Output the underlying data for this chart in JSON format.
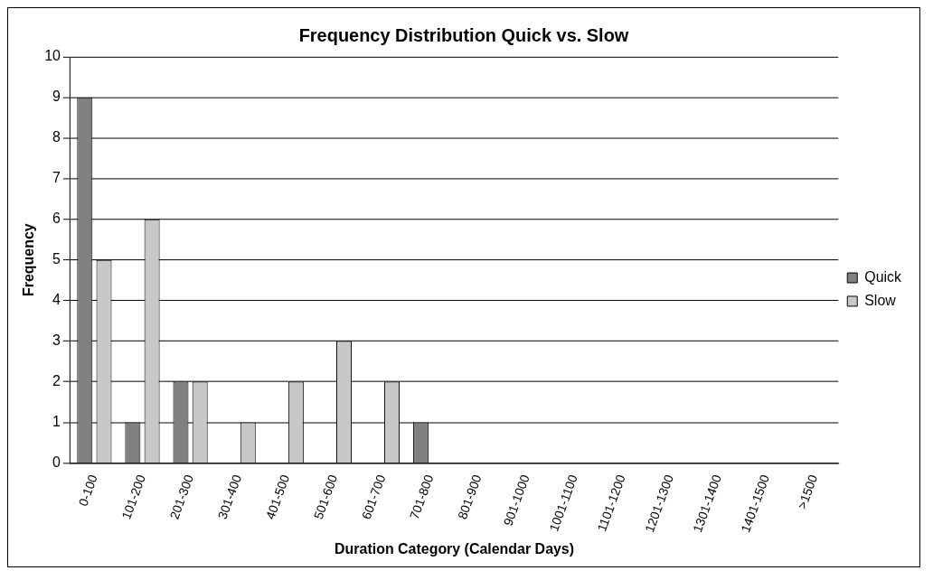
{
  "chart_data": {
    "type": "bar",
    "title": "Frequency Distribution Quick vs. Slow",
    "xlabel": "Duration Category (Calendar Days)",
    "ylabel": "Frequency",
    "categories": [
      "0-100",
      "101-200",
      "201-300",
      "301-400",
      "401-500",
      "501-600",
      "601-700",
      "701-800",
      "801-900",
      "901-1000",
      "1001-1100",
      "1101-1200",
      "1201-1300",
      "1301-1400",
      "1401-1500",
      ">1500"
    ],
    "series": [
      {
        "name": "Quick",
        "color": "#808080",
        "values": [
          9,
          1,
          2,
          0,
          0,
          0,
          0,
          1,
          0,
          0,
          0,
          0,
          0,
          0,
          0,
          0
        ]
      },
      {
        "name": "Slow",
        "color": "#c8c8c8",
        "values": [
          5,
          6,
          2,
          1,
          2,
          3,
          2,
          0,
          0,
          0,
          0,
          0,
          0,
          0,
          0,
          0
        ]
      }
    ],
    "ylim": [
      0,
      10
    ],
    "yticks": [
      0,
      1,
      2,
      3,
      4,
      5,
      6,
      7,
      8,
      9,
      10
    ],
    "grid": "y",
    "legend": "right"
  }
}
